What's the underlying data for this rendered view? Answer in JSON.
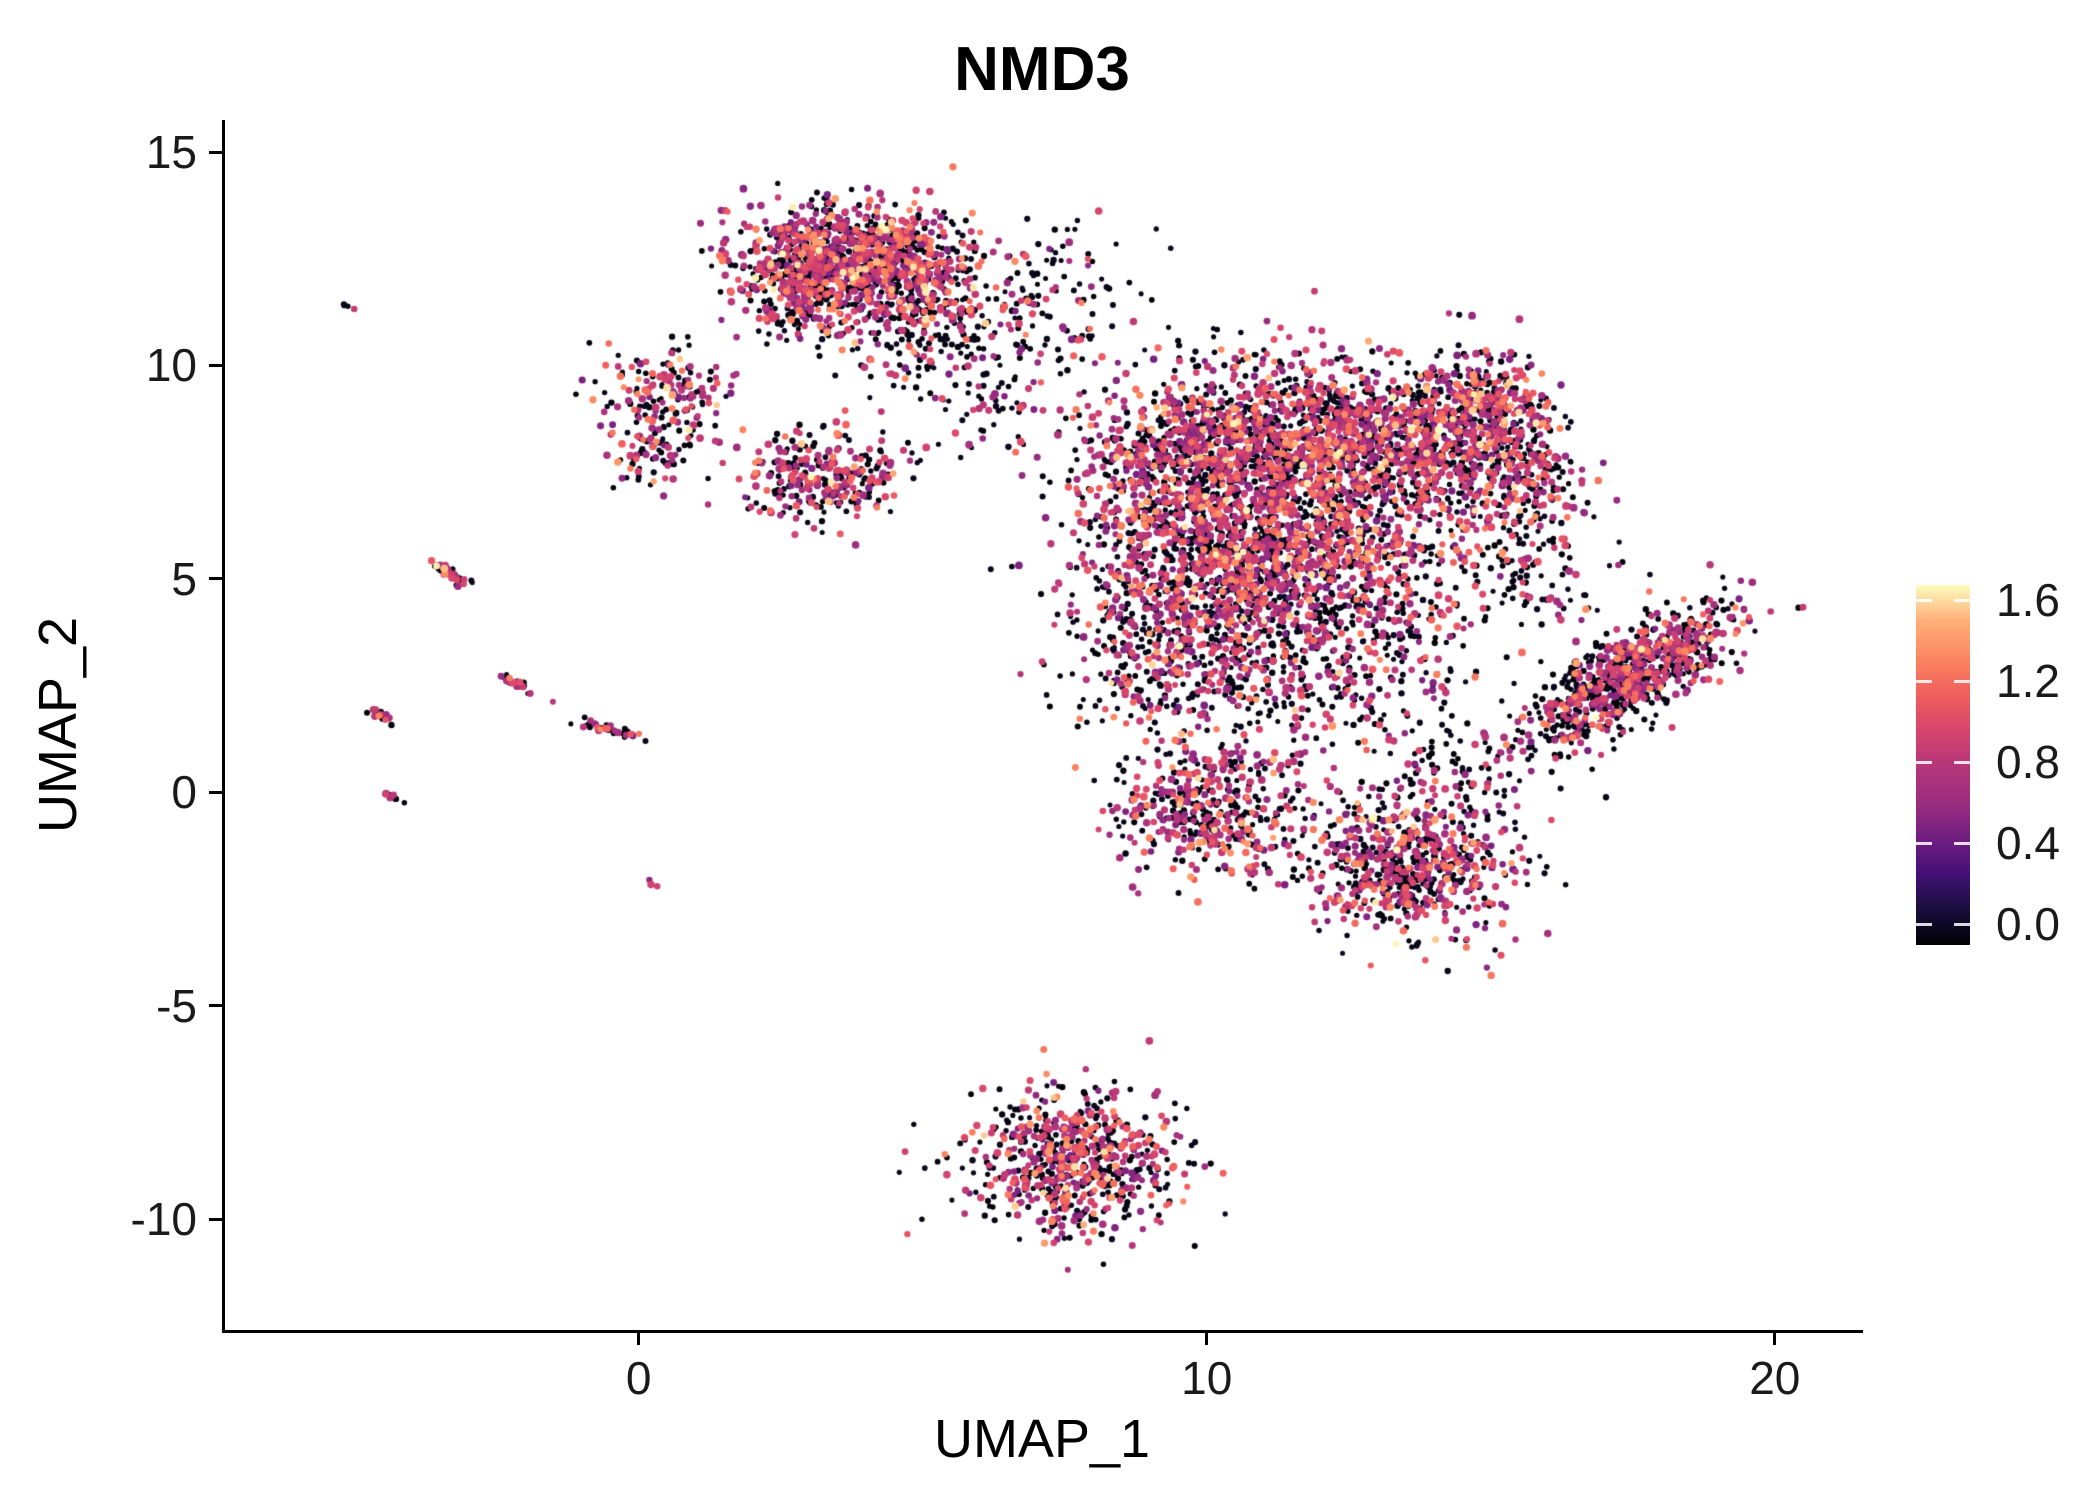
{
  "title": "NMD3",
  "chart_data": {
    "type": "scatter",
    "title": "NMD3",
    "xlabel": "UMAP_1",
    "ylabel": "UMAP_2",
    "xlim": [
      -7.3,
      21.5
    ],
    "ylim": [
      -12.6,
      15.75
    ],
    "grid": false,
    "legend_position": "right",
    "x_tick_values": [
      0,
      10,
      20
    ],
    "x_tick_labels": [
      "0",
      "10",
      "20"
    ],
    "y_tick_values": [
      -10,
      -5,
      0,
      5,
      10,
      15
    ],
    "y_tick_labels": [
      "-10",
      "-5",
      "0",
      "5",
      "10",
      "15"
    ],
    "color_scale": {
      "name": "magma",
      "domain": [
        0,
        1.6
      ],
      "tick_values": [
        0,
        0.4,
        0.8,
        1.2,
        1.6
      ],
      "tick_labels": [
        "0.0",
        "0.4",
        "0.8",
        "1.2",
        "1.6"
      ],
      "stops": [
        [
          0.0,
          "#000004"
        ],
        [
          0.1,
          "#180F3E"
        ],
        [
          0.2,
          "#451077"
        ],
        [
          0.3,
          "#721F81"
        ],
        [
          0.4,
          "#9C2E7F"
        ],
        [
          0.5,
          "#B63679"
        ],
        [
          0.6,
          "#D8456C"
        ],
        [
          0.7,
          "#F1605D"
        ],
        [
          0.8,
          "#FB8861"
        ],
        [
          0.9,
          "#FEAE77"
        ],
        [
          1.0,
          "#FCFDBF"
        ]
      ]
    },
    "seed": 42,
    "point_count_estimate": 10255,
    "color_mix_default": [
      0.46,
      0.4,
      0.11,
      0.03
    ],
    "value_bands": {
      "zero": [
        0,
        0.08
      ],
      "mid": [
        0.5,
        1.0
      ],
      "high": [
        1.0,
        1.3
      ],
      "max": [
        1.3,
        1.6
      ]
    },
    "clusters": [
      {
        "name": "speck-top-left",
        "cx": -5.05,
        "cy": 11.35,
        "sdx": 0.08,
        "sdy": 0.04,
        "rot": -35,
        "n": 4,
        "mix": [
          0.5,
          0.5,
          0,
          0
        ]
      },
      {
        "name": "streak-a",
        "cx": -3.3,
        "cy": 5.1,
        "sdx": 0.22,
        "sdy": 0.06,
        "rot": -40,
        "n": 40,
        "mix": [
          0.45,
          0.44,
          0.09,
          0.02
        ]
      },
      {
        "name": "streak-b",
        "cx": -4.55,
        "cy": 1.8,
        "sdx": 0.15,
        "sdy": 0.05,
        "rot": -35,
        "n": 18,
        "mix": [
          0.4,
          0.5,
          0.1,
          0
        ]
      },
      {
        "name": "streak-c",
        "cx": -2.15,
        "cy": 2.55,
        "sdx": 0.18,
        "sdy": 0.05,
        "rot": -38,
        "n": 26,
        "mix": [
          0.45,
          0.45,
          0.1,
          0
        ]
      },
      {
        "name": "streak-d",
        "cx": -0.6,
        "cy": 1.5,
        "sdx": 0.27,
        "sdy": 0.06,
        "rot": -20,
        "n": 34,
        "mix": [
          0.5,
          0.4,
          0.1,
          0
        ]
      },
      {
        "name": "speck-left",
        "cx": -4.3,
        "cy": -0.1,
        "sdx": 0.1,
        "sdy": 0.05,
        "rot": -30,
        "n": 10,
        "mix": [
          0.5,
          0.5,
          0,
          0
        ]
      },
      {
        "name": "speck-south",
        "cx": 0.3,
        "cy": -2.15,
        "sdx": 0.06,
        "sdy": 0.05,
        "rot": 0,
        "n": 3,
        "mix": [
          0.35,
          0.65,
          0,
          0
        ]
      },
      {
        "name": "west-upper",
        "cx": 0.5,
        "cy": 9.3,
        "sdx": 0.55,
        "sdy": 0.62,
        "rot": 0,
        "n": 160
      },
      {
        "name": "west-lower",
        "cx": 0.2,
        "cy": 8.0,
        "sdx": 0.42,
        "sdy": 0.48,
        "rot": 0,
        "n": 80
      },
      {
        "name": "mid-left",
        "cx": 3.3,
        "cy": 7.4,
        "sdx": 0.7,
        "sdy": 0.56,
        "rot": 8,
        "n": 290
      },
      {
        "name": "top-core",
        "cx": 3.5,
        "cy": 12.7,
        "sdx": 0.95,
        "sdy": 0.55,
        "rot": 0,
        "n": 640,
        "mix": [
          0.4,
          0.45,
          0.12,
          0.03
        ]
      },
      {
        "name": "top-east",
        "cx": 4.6,
        "cy": 12.0,
        "sdx": 0.85,
        "sdy": 0.7,
        "rot": 0,
        "n": 450,
        "mix": [
          0.4,
          0.45,
          0.12,
          0.03
        ]
      },
      {
        "name": "top-west",
        "cx": 2.9,
        "cy": 11.7,
        "sdx": 0.6,
        "sdy": 0.55,
        "rot": 0,
        "n": 260,
        "mix": [
          0.42,
          0.44,
          0.11,
          0.03
        ]
      },
      {
        "name": "top-trail",
        "cx": 5.2,
        "cy": 10.6,
        "sdx": 0.8,
        "sdy": 0.7,
        "rot": 0,
        "n": 130,
        "mix": [
          0.6,
          0.33,
          0.06,
          0.01
        ]
      },
      {
        "name": "bridge-sparse",
        "cx": 6.9,
        "cy": 10.9,
        "sdx": 0.9,
        "sdy": 0.85,
        "rot": 0,
        "n": 90,
        "mix": [
          0.65,
          0.3,
          0.05,
          0
        ]
      },
      {
        "name": "bridge-top",
        "cx": 7.6,
        "cy": 12.1,
        "sdx": 0.7,
        "sdy": 0.75,
        "rot": 0,
        "n": 45,
        "mix": [
          0.7,
          0.26,
          0.04,
          0
        ]
      },
      {
        "name": "bridge-low",
        "cx": 6.1,
        "cy": 9.1,
        "sdx": 0.5,
        "sdy": 0.55,
        "rot": 0,
        "n": 45,
        "mix": [
          0.6,
          0.35,
          0.05,
          0
        ]
      },
      {
        "name": "main-nw",
        "cx": 9.6,
        "cy": 7.6,
        "sdx": 1.15,
        "sdy": 1.25,
        "rot": 0,
        "n": 900
      },
      {
        "name": "main-n",
        "cx": 11.6,
        "cy": 8.4,
        "sdx": 1.3,
        "sdy": 1.0,
        "rot": 0,
        "n": 900
      },
      {
        "name": "main-e",
        "cx": 12.4,
        "cy": 6.0,
        "sdx": 1.3,
        "sdy": 1.4,
        "rot": 0,
        "n": 1000
      },
      {
        "name": "main-sw",
        "cx": 10.4,
        "cy": 5.0,
        "sdx": 1.25,
        "sdy": 1.15,
        "rot": 0,
        "n": 700
      },
      {
        "name": "main-ne",
        "cx": 13.9,
        "cy": 8.3,
        "sdx": 0.95,
        "sdy": 0.75,
        "rot": 0,
        "n": 400
      },
      {
        "name": "arm-top",
        "cx": 14.9,
        "cy": 9.3,
        "sdx": 0.6,
        "sdy": 0.6,
        "rot": 0,
        "n": 200
      },
      {
        "name": "arm-east",
        "cx": 15.3,
        "cy": 7.5,
        "sdx": 0.65,
        "sdy": 1.15,
        "rot": 15,
        "n": 380
      },
      {
        "name": "tail-west",
        "cx": 9.2,
        "cy": 3.4,
        "sdx": 0.9,
        "sdy": 1.2,
        "rot": 0,
        "n": 330,
        "mix": [
          0.55,
          0.37,
          0.07,
          0.01
        ]
      },
      {
        "name": "tail-mid",
        "cx": 12.0,
        "cy": 2.9,
        "sdx": 1.25,
        "sdy": 1.05,
        "rot": 0,
        "n": 340,
        "mix": [
          0.6,
          0.33,
          0.06,
          0.01
        ]
      },
      {
        "name": "south-west",
        "cx": 10.0,
        "cy": -0.3,
        "sdx": 0.85,
        "sdy": 0.8,
        "rot": 0,
        "n": 450
      },
      {
        "name": "south-east",
        "cx": 13.6,
        "cy": -1.7,
        "sdx": 0.95,
        "sdy": 0.85,
        "rot": -20,
        "n": 650
      },
      {
        "name": "south-bridge",
        "cx": 14.4,
        "cy": 0.4,
        "sdx": 0.8,
        "sdy": 0.75,
        "rot": 0,
        "n": 110,
        "mix": [
          0.7,
          0.27,
          0.03,
          0
        ]
      },
      {
        "name": "east-gap",
        "cx": 15.8,
        "cy": 5.0,
        "sdx": 0.6,
        "sdy": 0.7,
        "rot": 0,
        "n": 60,
        "mix": [
          0.7,
          0.27,
          0.03,
          0
        ]
      },
      {
        "name": "east-blade",
        "cx": 17.45,
        "cy": 2.7,
        "sdx": 1.15,
        "sdy": 0.42,
        "rot": 42,
        "n": 850,
        "mix": [
          0.5,
          0.39,
          0.09,
          0.02
        ]
      },
      {
        "name": "bottom-wedge",
        "cx": 7.7,
        "cy": -8.7,
        "sdx": 0.9,
        "sdy": 0.85,
        "rot": -15,
        "n": 660
      }
    ]
  }
}
